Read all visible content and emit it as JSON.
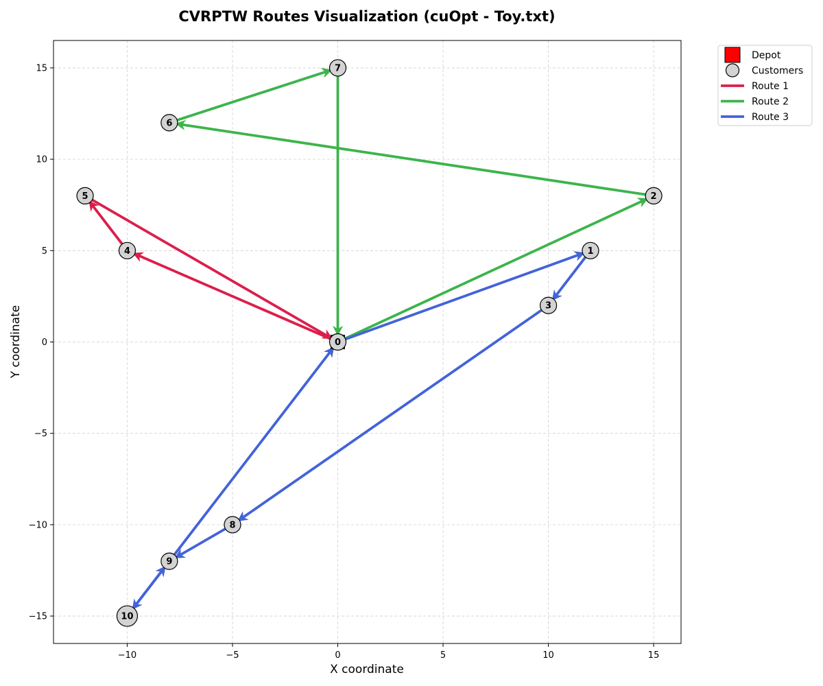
{
  "chart_data": {
    "type": "scatter",
    "title": "CVRPTW Routes Visualization (cuOpt - Toy.txt)",
    "xlabel": "X coordinate",
    "ylabel": "Y coordinate",
    "xlim": [
      -13.5,
      16.3
    ],
    "ylim": [
      -16.5,
      16.5
    ],
    "xticks": [
      -10,
      -5,
      0,
      5,
      10,
      15
    ],
    "yticks": [
      -15,
      -10,
      -5,
      0,
      5,
      10,
      15
    ],
    "xtick_labels": [
      "−10",
      "−5",
      "0",
      "5",
      "10",
      "15"
    ],
    "ytick_labels": [
      "−15",
      "−10",
      "−5",
      "0",
      "5",
      "10",
      "15"
    ],
    "grid": true,
    "legend_position": "outside-top-right",
    "depot": {
      "id": "0",
      "label": "0",
      "x": 0,
      "y": 0
    },
    "customers": [
      {
        "id": "1",
        "label": "1",
        "x": 12,
        "y": 5
      },
      {
        "id": "2",
        "label": "2",
        "x": 15,
        "y": 8
      },
      {
        "id": "3",
        "label": "3",
        "x": 10,
        "y": 2
      },
      {
        "id": "4",
        "label": "4",
        "x": -10,
        "y": 5
      },
      {
        "id": "5",
        "label": "5",
        "x": -12,
        "y": 8
      },
      {
        "id": "6",
        "label": "6",
        "x": -8,
        "y": 12
      },
      {
        "id": "7",
        "label": "7",
        "x": 0,
        "y": 15
      },
      {
        "id": "8",
        "label": "8",
        "x": -5,
        "y": -10
      },
      {
        "id": "9",
        "label": "9",
        "x": -8,
        "y": -12
      },
      {
        "id": "10",
        "label": "10",
        "x": -10,
        "y": -15
      }
    ],
    "series": [
      {
        "name": "Route 1",
        "color": "#dc1e4b",
        "stops": [
          "0",
          "4",
          "5",
          "0"
        ]
      },
      {
        "name": "Route 2",
        "color": "#3cb44b",
        "stops": [
          "0",
          "2",
          "6",
          "7",
          "0"
        ]
      },
      {
        "name": "Route 3",
        "color": "#4363d8",
        "stops": [
          "0",
          "1",
          "3",
          "8",
          "9",
          "10",
          "9",
          "0"
        ]
      }
    ],
    "legend": [
      {
        "key": "depot",
        "label": "Depot",
        "marker": "square",
        "color": "#ff0000"
      },
      {
        "key": "customers",
        "label": "Customers",
        "marker": "circle",
        "color": "#d3d3d3"
      },
      {
        "key": "route1",
        "label": "Route 1",
        "marker": "line",
        "color": "#dc1e4b"
      },
      {
        "key": "route2",
        "label": "Route 2",
        "marker": "line",
        "color": "#3cb44b"
      },
      {
        "key": "route3",
        "label": "Route 3",
        "marker": "line",
        "color": "#4363d8"
      }
    ]
  }
}
